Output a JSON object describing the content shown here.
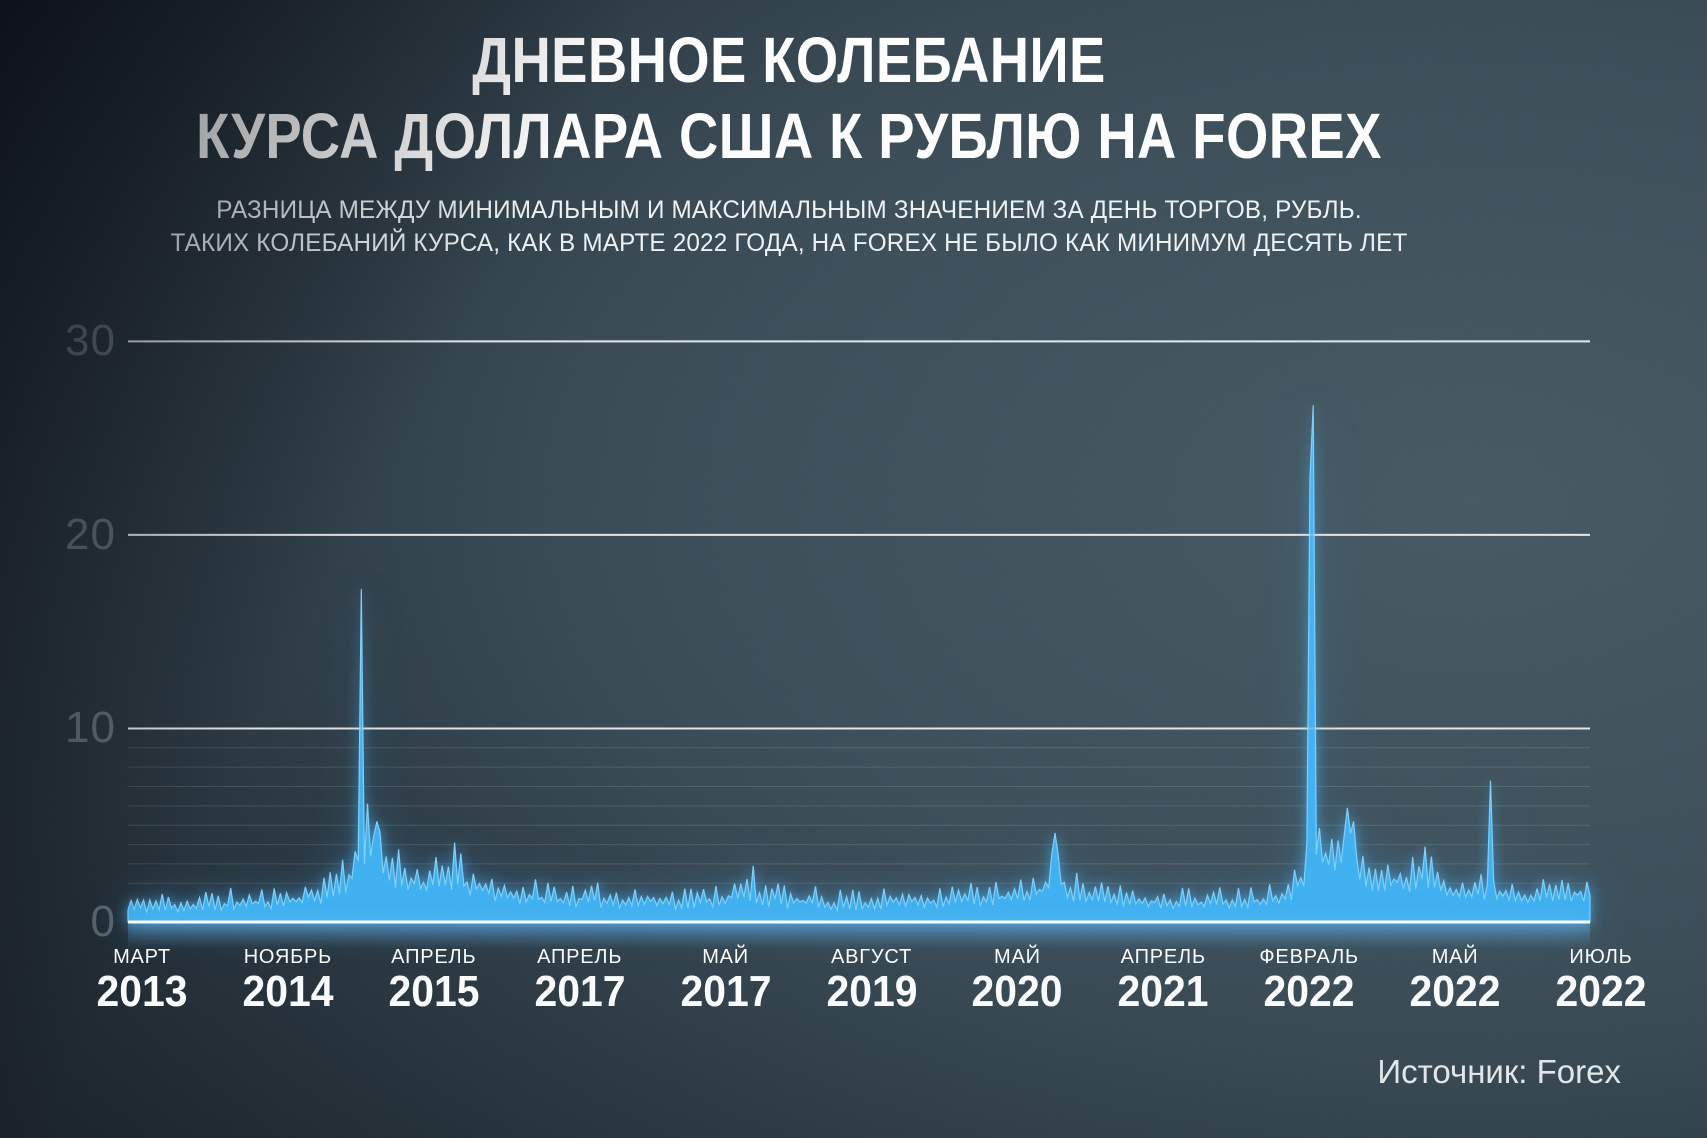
{
  "title": {
    "line1": "ДНЕВНОЕ КОЛЕБАНИЕ",
    "line2": "КУРСА ДОЛЛАРА США К РУБЛЮ НА FOREX"
  },
  "subtitle": {
    "line1": "РАЗНИЦА МЕЖДУ МИНИМАЛЬНЫМ И МАКСИМАЛЬНЫМ ЗНАЧЕНИЕМ ЗА ДЕНЬ ТОРГОВ, РУБЛЬ.",
    "line2": "ТАКИХ КОЛЕБАНИЙ КУРСА, КАК В МАРТЕ 2022 ГОДА, НА FOREX НЕ БЫЛО КАК МИНИМУМ ДЕСЯТЬ ЛЕТ"
  },
  "source": "Источник: Forex",
  "colors": {
    "area_fill": "#3fb2f3",
    "area_edge": "#7fd0fa",
    "baseline": "#ffffff",
    "grid_major": "rgba(255,255,255,0.82)",
    "grid_major_overlay": "rgba(255,255,255,0.22)",
    "grid_minor": "rgba(255,255,255,0.13)",
    "background_dark": "#0d1219",
    "background_light": "#3d4f59",
    "text": "#ffffff"
  },
  "chart_data": {
    "type": "area",
    "title": "Дневное колебание курса доллара США к рублю на Forex",
    "ylabel": "рубль",
    "ylim": [
      0,
      31
    ],
    "yticks": [
      0,
      10,
      20,
      30
    ],
    "minor_ticks": [
      1,
      2,
      3,
      4,
      5,
      6,
      7,
      8,
      9
    ],
    "grid": true,
    "legend": false,
    "x_ticks": [
      {
        "month": "МАРТ",
        "year": "2013"
      },
      {
        "month": "НОЯБРЬ",
        "year": "2014"
      },
      {
        "month": "АПРЕЛЬ",
        "year": "2015"
      },
      {
        "month": "АПРЕЛЬ",
        "year": "2017"
      },
      {
        "month": "МАЙ",
        "year": "2017"
      },
      {
        "month": "АВГУСТ",
        "year": "2019"
      },
      {
        "month": "МАЙ",
        "year": "2020"
      },
      {
        "month": "АПРЕЛЬ",
        "year": "2021"
      },
      {
        "month": "ФЕВРАЛЬ",
        "year": "2022"
      },
      {
        "month": "МАЙ",
        "year": "2022"
      },
      {
        "month": "ИЮЛЬ",
        "year": "2022"
      }
    ],
    "key_points": [
      {
        "x": 0.16,
        "value": 17.2
      },
      {
        "x": 0.17,
        "value": 5.2
      },
      {
        "x": 0.224,
        "value": 4.1
      },
      {
        "x": 0.428,
        "value": 2.9
      },
      {
        "x": 0.633,
        "value": 4.6
      },
      {
        "x": 0.637,
        "value": 3.5
      },
      {
        "x": 0.8095,
        "value": 23.0
      },
      {
        "x": 0.8105,
        "value": 26.7
      },
      {
        "x": 0.8225,
        "value": 4.3
      },
      {
        "x": 0.835,
        "value": 5.9
      },
      {
        "x": 0.838,
        "value": 5.2
      },
      {
        "x": 0.888,
        "value": 3.9
      },
      {
        "x": 0.9316,
        "value": 7.3
      }
    ],
    "envelope": [
      [
        0.0,
        0.4,
        1.5
      ],
      [
        0.05,
        0.4,
        1.7
      ],
      [
        0.1,
        0.6,
        1.9
      ],
      [
        0.13,
        0.8,
        2.4
      ],
      [
        0.148,
        1.2,
        3.6
      ],
      [
        0.157,
        2.0,
        4.6
      ],
      [
        0.163,
        2.5,
        6.5
      ],
      [
        0.17,
        2.0,
        5.0
      ],
      [
        0.185,
        1.6,
        4.0
      ],
      [
        0.205,
        1.2,
        3.2
      ],
      [
        0.222,
        1.5,
        3.9
      ],
      [
        0.238,
        1.1,
        2.9
      ],
      [
        0.265,
        0.8,
        2.4
      ],
      [
        0.3,
        0.7,
        2.1
      ],
      [
        0.345,
        0.6,
        2.0
      ],
      [
        0.39,
        0.6,
        1.9
      ],
      [
        0.425,
        0.8,
        2.7
      ],
      [
        0.45,
        0.6,
        2.0
      ],
      [
        0.49,
        0.5,
        1.7
      ],
      [
        0.53,
        0.6,
        1.9
      ],
      [
        0.57,
        0.7,
        2.1
      ],
      [
        0.61,
        0.8,
        2.2
      ],
      [
        0.625,
        1.0,
        3.0
      ],
      [
        0.633,
        1.6,
        4.2
      ],
      [
        0.645,
        1.0,
        2.8
      ],
      [
        0.66,
        0.8,
        2.1
      ],
      [
        0.7,
        0.6,
        1.9
      ],
      [
        0.74,
        0.6,
        1.8
      ],
      [
        0.775,
        0.7,
        2.0
      ],
      [
        0.795,
        1.0,
        2.6
      ],
      [
        0.805,
        1.6,
        3.6
      ],
      [
        0.812,
        2.5,
        6.0
      ],
      [
        0.82,
        2.2,
        4.5
      ],
      [
        0.835,
        2.5,
        5.5
      ],
      [
        0.845,
        1.6,
        3.4
      ],
      [
        0.858,
        1.4,
        3.2
      ],
      [
        0.872,
        1.4,
        3.4
      ],
      [
        0.888,
        1.6,
        3.8
      ],
      [
        0.9,
        1.3,
        2.9
      ],
      [
        0.915,
        1.0,
        2.4
      ],
      [
        0.928,
        1.0,
        2.6
      ],
      [
        0.94,
        1.0,
        2.4
      ],
      [
        0.96,
        0.9,
        2.2
      ],
      [
        0.98,
        0.9,
        2.3
      ],
      [
        1.0,
        1.0,
        2.2
      ]
    ],
    "n_points": 470,
    "seed": 11
  }
}
